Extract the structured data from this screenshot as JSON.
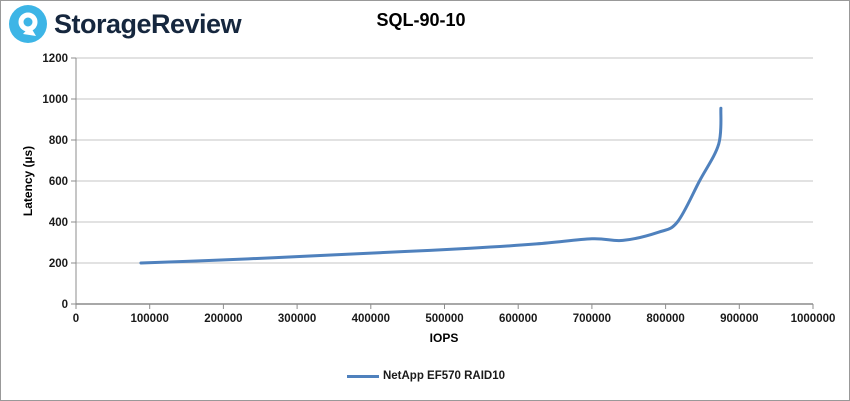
{
  "header": {
    "brand": "StorageReview",
    "logo_icon": "storagereview-logo",
    "brand_color": "#16273e",
    "logo_blue": "#3db5e6"
  },
  "chart_data": {
    "type": "line",
    "title": "SQL-90-10",
    "xlabel": "IOPS",
    "ylabel": "Latency (µs)",
    "xlim": [
      0,
      1000000
    ],
    "ylim": [
      0,
      1200
    ],
    "x_tick_step": 100000,
    "y_tick_step": 200,
    "grid": "horizontal-only",
    "gridline_color": "#c6c6c6",
    "axis_color": "#8c8c8c",
    "legend_position": "bottom-center",
    "series": [
      {
        "name": "NetApp EF570 RAID10",
        "color": "#4f81bd",
        "points": [
          [
            88000,
            200
          ],
          [
            180000,
            212
          ],
          [
            268000,
            226
          ],
          [
            357000,
            241
          ],
          [
            446000,
            256
          ],
          [
            535000,
            272
          ],
          [
            625000,
            293
          ],
          [
            700000,
            318
          ],
          [
            742000,
            310
          ],
          [
            790000,
            350
          ],
          [
            816000,
            400
          ],
          [
            846000,
            600
          ],
          [
            872000,
            780
          ],
          [
            875000,
            955
          ]
        ]
      }
    ]
  }
}
